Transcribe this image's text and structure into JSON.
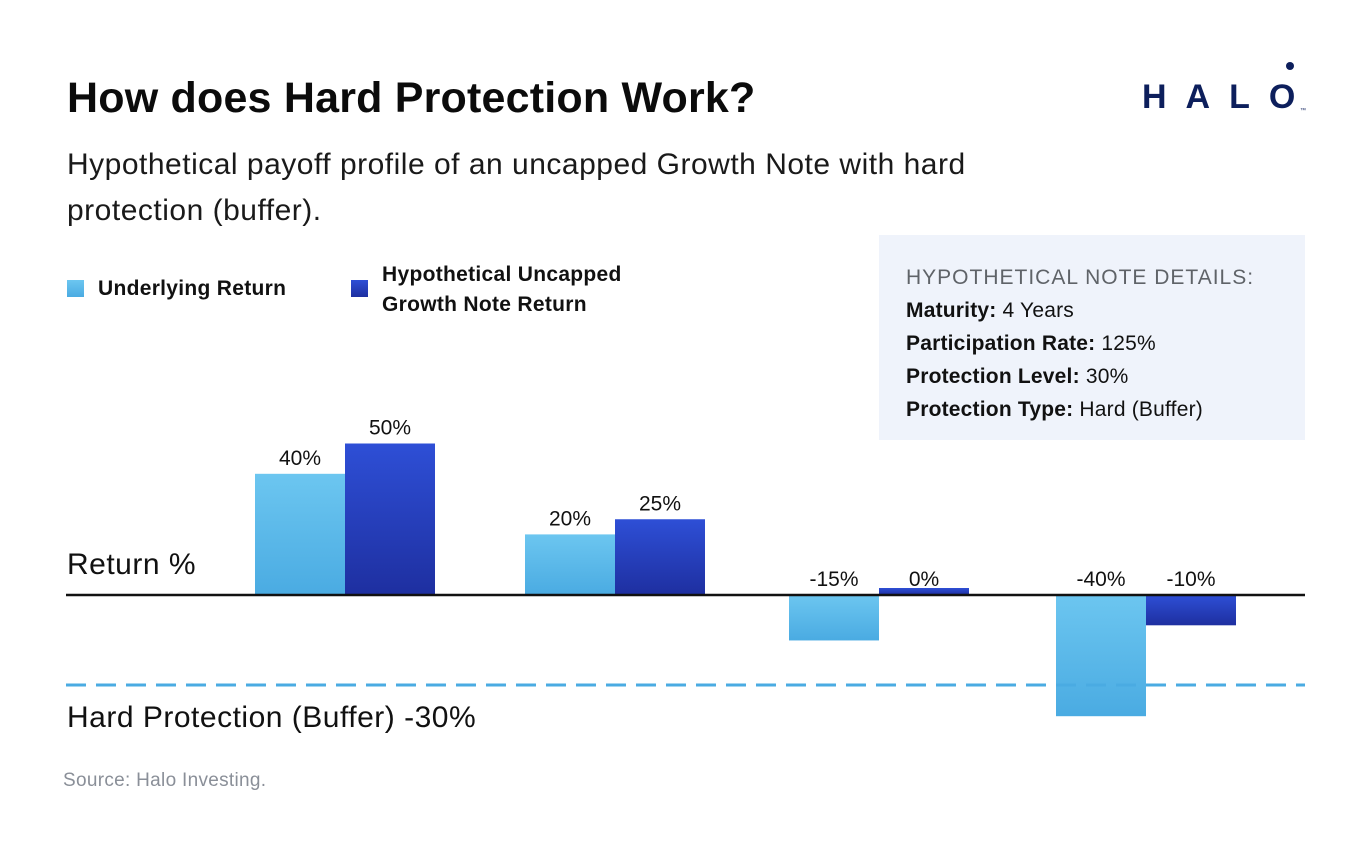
{
  "header": {
    "title": "How does Hard Protection Work?",
    "subtitle": "Hypothetical payoff profile of an uncapped Growth Note with hard protection (buffer)."
  },
  "logo": {
    "text": "HALO",
    "trademark": "™",
    "color": "#0d1f5c"
  },
  "details_box": {
    "heading": "HYPOTHETICAL NOTE DETAILS:",
    "rows": [
      {
        "label": "Maturity:",
        "value": "4 Years"
      },
      {
        "label": "Participation Rate:",
        "value": "125%"
      },
      {
        "label": "Protection Level:",
        "value": "30%"
      },
      {
        "label": "Protection Type:",
        "value": "Hard (Buffer)"
      }
    ]
  },
  "labels": {
    "return_axis": "Return %",
    "buffer": "Hard Protection (Buffer) -30%"
  },
  "source": "Source: Halo Investing.",
  "chart_data": {
    "type": "bar",
    "categories": [
      "",
      "",
      "",
      ""
    ],
    "series": [
      {
        "name": "Underlying Return",
        "values": [
          40,
          20,
          -15,
          -40
        ],
        "labels": [
          "40%",
          "20%",
          "-15%",
          "-40%"
        ],
        "color_top": "#6cc6f0",
        "color_bottom": "#4aabe2"
      },
      {
        "name": "Hypothetical Uncapped Growth Note Return",
        "values": [
          50,
          25,
          0,
          -10
        ],
        "labels": [
          "50%",
          "25%",
          "0%",
          "-10%"
        ],
        "color_top": "#2e4fd6",
        "color_bottom": "#1e2fa0"
      }
    ],
    "ylim": [
      -40,
      50
    ],
    "reference_line": {
      "value": -30,
      "style": "dashed",
      "color": "#4aabe2"
    },
    "zero_line_color": "#111111",
    "grid": false,
    "legend_position": "top-left"
  }
}
